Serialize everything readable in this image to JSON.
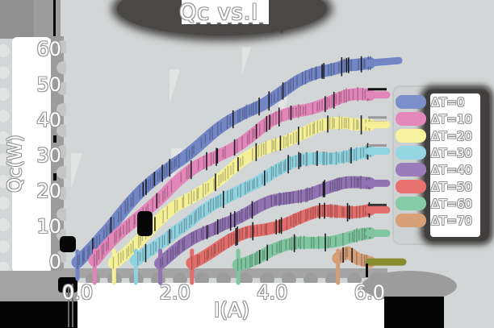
{
  "title": "Qc vs.I",
  "axes": {
    "x_label": "I(A)",
    "y_label": "Qc(W)",
    "x_ticks": [
      "0.0",
      "2.0",
      "4.0",
      "6.0"
    ],
    "y_ticks": [
      "0",
      "10",
      "20",
      "30",
      "40",
      "50",
      "60"
    ]
  },
  "legend": {
    "items": [
      {
        "label": "ΔT=0",
        "color": "#7d8fca"
      },
      {
        "label": "ΔT=10",
        "color": "#e487bb"
      },
      {
        "label": "ΔT=20",
        "color": "#f6f29e"
      },
      {
        "label": "ΔT=30",
        "color": "#94d6e2"
      },
      {
        "label": "ΔT=40",
        "color": "#9b7cba"
      },
      {
        "label": "ΔT=50",
        "color": "#e8716f"
      },
      {
        "label": "ΔT=60",
        "color": "#85cba6"
      },
      {
        "label": "ΔT=70",
        "color": "#d8a077"
      }
    ]
  },
  "chart_data": {
    "type": "line",
    "title": "Qc vs.I",
    "xlabel": "I(A)",
    "ylabel": "Qc(W)",
    "xlim": [
      0,
      6
    ],
    "ylim": [
      0,
      60
    ],
    "grid": false,
    "legend_position": "right",
    "style": "hand-drawn crayon bands with hatch and black error ticks",
    "series": [
      {
        "name": "ΔT=0",
        "color": "#7285c5",
        "points": [
          [
            0,
            0
          ],
          [
            0.5,
            8
          ],
          [
            1,
            15
          ],
          [
            1.5,
            21.5
          ],
          [
            2,
            28
          ],
          [
            2.5,
            33
          ],
          [
            3,
            38
          ],
          [
            3.5,
            43
          ],
          [
            4,
            47
          ],
          [
            4.5,
            50.5
          ],
          [
            5,
            53.5
          ],
          [
            5.5,
            56
          ],
          [
            6,
            55.5
          ]
        ]
      },
      {
        "name": "ΔT=10",
        "color": "#e285b8",
        "points": [
          [
            0.35,
            0
          ],
          [
            1,
            9
          ],
          [
            1.5,
            16
          ],
          [
            2,
            22
          ],
          [
            2.5,
            27
          ],
          [
            3,
            31.5
          ],
          [
            3.5,
            35.5
          ],
          [
            4,
            39.5
          ],
          [
            4.5,
            42.5
          ],
          [
            5,
            44.5
          ],
          [
            5.5,
            46
          ],
          [
            6,
            46.5
          ]
        ]
      },
      {
        "name": "ΔT=20",
        "color": "#f5f096",
        "points": [
          [
            0.75,
            0
          ],
          [
            1.5,
            9
          ],
          [
            2,
            15.5
          ],
          [
            2.5,
            20.5
          ],
          [
            3,
            24.5
          ],
          [
            3.5,
            29
          ],
          [
            4,
            33
          ],
          [
            4.5,
            35.5
          ],
          [
            5,
            37.5
          ],
          [
            5.5,
            39
          ],
          [
            6,
            39.5
          ]
        ]
      },
      {
        "name": "ΔT=30",
        "color": "#8fd2e0",
        "points": [
          [
            1.2,
            0
          ],
          [
            2,
            9.5
          ],
          [
            2.5,
            13.5
          ],
          [
            3,
            17
          ],
          [
            3.5,
            21.5
          ],
          [
            4,
            25
          ],
          [
            4.5,
            27.5
          ],
          [
            5,
            29.5
          ],
          [
            5.5,
            30.5
          ],
          [
            6,
            31
          ]
        ]
      },
      {
        "name": "ΔT=40",
        "color": "#9173b3",
        "points": [
          [
            1.7,
            0
          ],
          [
            2.5,
            7
          ],
          [
            3,
            11
          ],
          [
            3.5,
            13.5
          ],
          [
            4,
            16.5
          ],
          [
            4.5,
            19
          ],
          [
            5,
            21
          ],
          [
            5.5,
            22
          ],
          [
            6,
            22.5
          ]
        ]
      },
      {
        "name": "ΔT=50",
        "color": "#e26e6c",
        "points": [
          [
            2.35,
            0
          ],
          [
            3,
            4.5
          ],
          [
            3.5,
            8
          ],
          [
            4,
            10.5
          ],
          [
            4.5,
            12.5
          ],
          [
            5,
            14
          ],
          [
            5.5,
            14.5
          ],
          [
            6,
            15
          ]
        ]
      },
      {
        "name": "ΔT=60",
        "color": "#7fc6a0",
        "points": [
          [
            3.3,
            0
          ],
          [
            4,
            3.5
          ],
          [
            4.5,
            5
          ],
          [
            5,
            6
          ],
          [
            5.5,
            6.5
          ],
          [
            6,
            7
          ]
        ]
      },
      {
        "name": "ΔT=70",
        "color": "#d49f78",
        "points": [
          [
            5.35,
            0
          ],
          [
            5.55,
            1.8
          ],
          [
            5.75,
            0.5
          ],
          [
            6,
            0.3
          ]
        ]
      }
    ]
  },
  "colors": {
    "plot_bg": "#d3d6d6",
    "corner_gray": "#909090",
    "shadow_dark": "#4a4847",
    "spine_gray": "#9c9c9c",
    "sticker_white": "#ffffff",
    "ink_black": "#050505",
    "tan_end_cap_olive": "#8a8d2e"
  }
}
